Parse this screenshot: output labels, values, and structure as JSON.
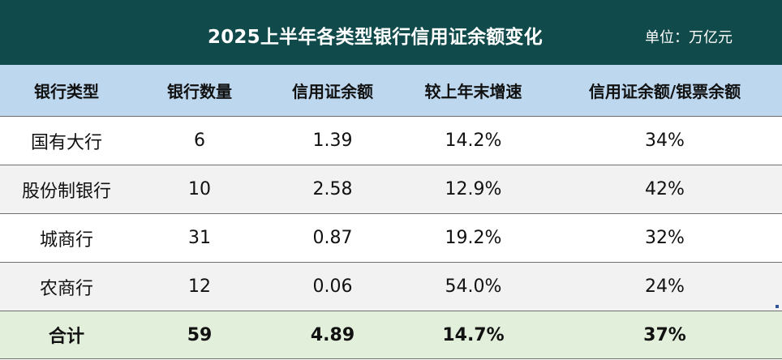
{
  "chart_data": {
    "type": "table",
    "title": "2025上半年各类型银行信用证余额变化",
    "unit": "单位：万亿元",
    "columns": [
      "银行类型",
      "银行数量",
      "信用证余额",
      "较上年末增速",
      "信用证余额/银票余额"
    ],
    "rows": [
      [
        "国有大行",
        "6",
        "1.39",
        "14.2%",
        "34%"
      ],
      [
        "股份制银行",
        "10",
        "2.58",
        "12.9%",
        "42%"
      ],
      [
        "城商行",
        "31",
        "0.87",
        "19.2%",
        "32%"
      ],
      [
        "农商行",
        "12",
        "0.06",
        "54.0%",
        "24%"
      ]
    ],
    "total": [
      "合计",
      "59",
      "4.89",
      "14.7%",
      "37%"
    ]
  },
  "colors": {
    "title_bg": "#114a4b",
    "header_bg": "#bdd7ee",
    "row_gray": "#f2f2f2",
    "total_bg": "#e2efda"
  }
}
